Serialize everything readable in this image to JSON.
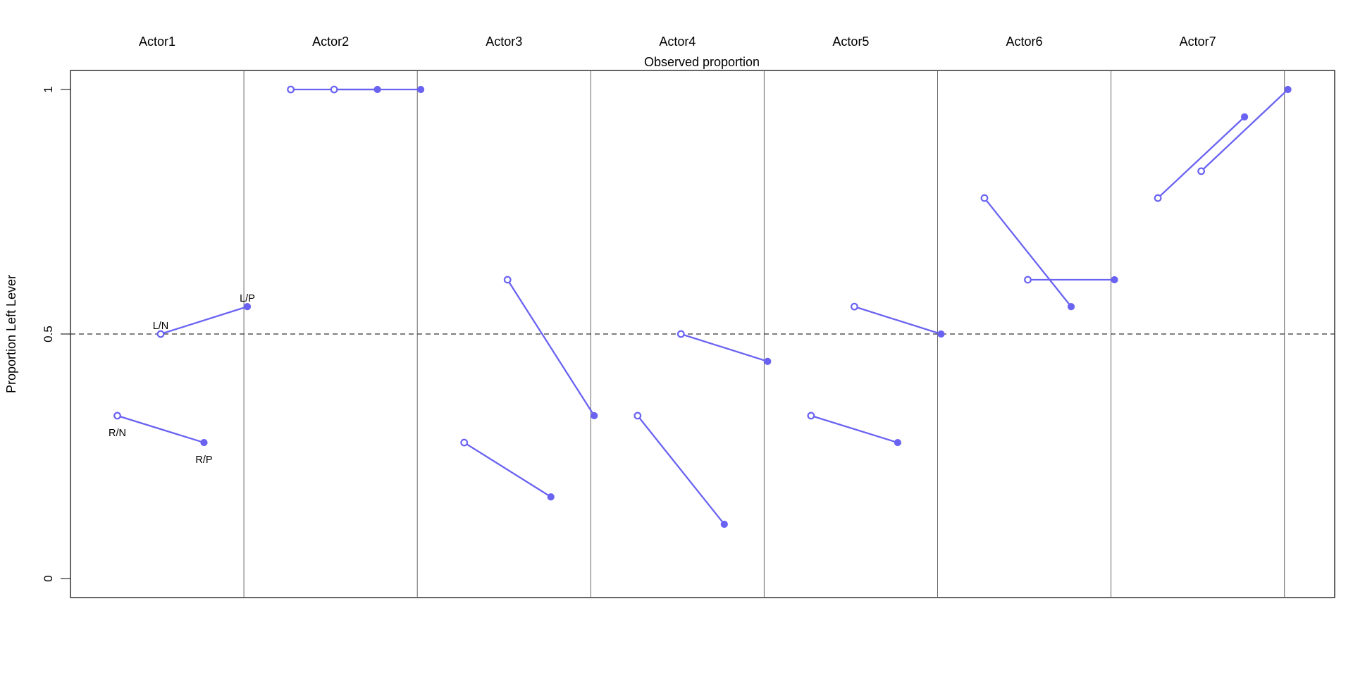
{
  "chart_data": {
    "type": "line",
    "title": "Observed proportion",
    "ylabel": "Proportion Left Lever",
    "xlabel": "",
    "ylim": [
      0,
      1
    ],
    "yticks": [
      0,
      0.5,
      1
    ],
    "ytick_labels": [
      "0",
      "0.5",
      "1"
    ],
    "reference_line": {
      "y": 0.5,
      "style": "dashed"
    },
    "actors": [
      "Actor1",
      "Actor2",
      "Actor3",
      "Actor4",
      "Actor5",
      "Actor6",
      "Actor7"
    ],
    "treatments": [
      "R/N",
      "L/N",
      "R/P",
      "L/P"
    ],
    "marker_style": {
      "R/N": "open",
      "L/N": "open",
      "R/P": "filled",
      "L/P": "filled"
    },
    "point_labels": [
      {
        "actor": "Actor1",
        "treatment": "R/N",
        "text": "R/N",
        "placement": "below"
      },
      {
        "actor": "Actor1",
        "treatment": "L/N",
        "text": "L/N",
        "placement": "above"
      },
      {
        "actor": "Actor1",
        "treatment": "R/P",
        "text": "R/P",
        "placement": "below"
      },
      {
        "actor": "Actor1",
        "treatment": "L/P",
        "text": "L/P",
        "placement": "above"
      }
    ],
    "values": {
      "Actor1": [
        0.333,
        0.5,
        0.278,
        0.556
      ],
      "Actor2": [
        1.0,
        1.0,
        1.0,
        1.0
      ],
      "Actor3": [
        0.278,
        0.611,
        0.167,
        0.333
      ],
      "Actor4": [
        0.333,
        0.5,
        0.111,
        0.444
      ],
      "Actor5": [
        0.333,
        0.556,
        0.278,
        0.5
      ],
      "Actor6": [
        0.778,
        0.611,
        0.556,
        0.611
      ],
      "Actor7": [
        0.778,
        0.833,
        0.944,
        1.0
      ]
    },
    "connections": [
      [
        "R/N",
        "R/P"
      ],
      [
        "L/N",
        "L/P"
      ]
    ],
    "color": "#6a63f2",
    "grid": false,
    "legend": "none"
  }
}
